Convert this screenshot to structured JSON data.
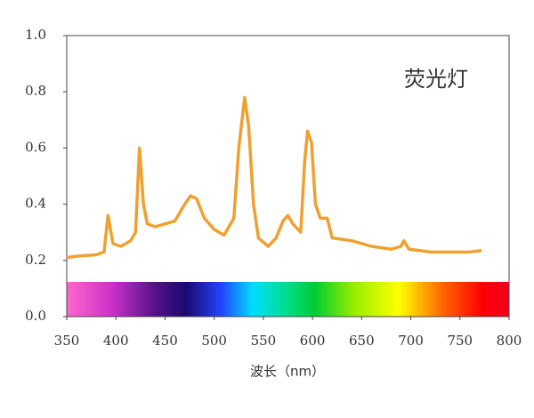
{
  "chart_data": {
    "type": "line",
    "annotation": "荧光灯",
    "x_label": "波长（nm）",
    "x": [
      350,
      360,
      380,
      388,
      392,
      397,
      405,
      415,
      420,
      424,
      428,
      432,
      440,
      460,
      470,
      476,
      482,
      490,
      500,
      510,
      520,
      525,
      531,
      535,
      540,
      545,
      555,
      563,
      570,
      575,
      580,
      588,
      592,
      595,
      599,
      603,
      608,
      615,
      620,
      640,
      660,
      680,
      690,
      693,
      698,
      720,
      740,
      760,
      772
    ],
    "series": [
      {
        "color": "#f0a030",
        "values": [
          0.21,
          0.215,
          0.22,
          0.23,
          0.36,
          0.26,
          0.25,
          0.27,
          0.3,
          0.6,
          0.4,
          0.33,
          0.32,
          0.34,
          0.4,
          0.43,
          0.42,
          0.35,
          0.31,
          0.29,
          0.35,
          0.6,
          0.78,
          0.68,
          0.4,
          0.28,
          0.25,
          0.28,
          0.34,
          0.36,
          0.33,
          0.3,
          0.55,
          0.66,
          0.62,
          0.4,
          0.35,
          0.35,
          0.28,
          0.27,
          0.25,
          0.24,
          0.25,
          0.27,
          0.24,
          0.23,
          0.23,
          0.23,
          0.235
        ]
      }
    ],
    "xlim": [
      350,
      800
    ],
    "ylim": [
      0,
      1
    ],
    "xticks": [
      350,
      400,
      450,
      500,
      550,
      600,
      650,
      700,
      750,
      800
    ],
    "yticks": [
      {
        "value": 0,
        "label": "0.0"
      },
      0.2,
      0.4,
      0.6,
      0.8,
      {
        "value": 1,
        "label": "1.0"
      }
    ]
  }
}
